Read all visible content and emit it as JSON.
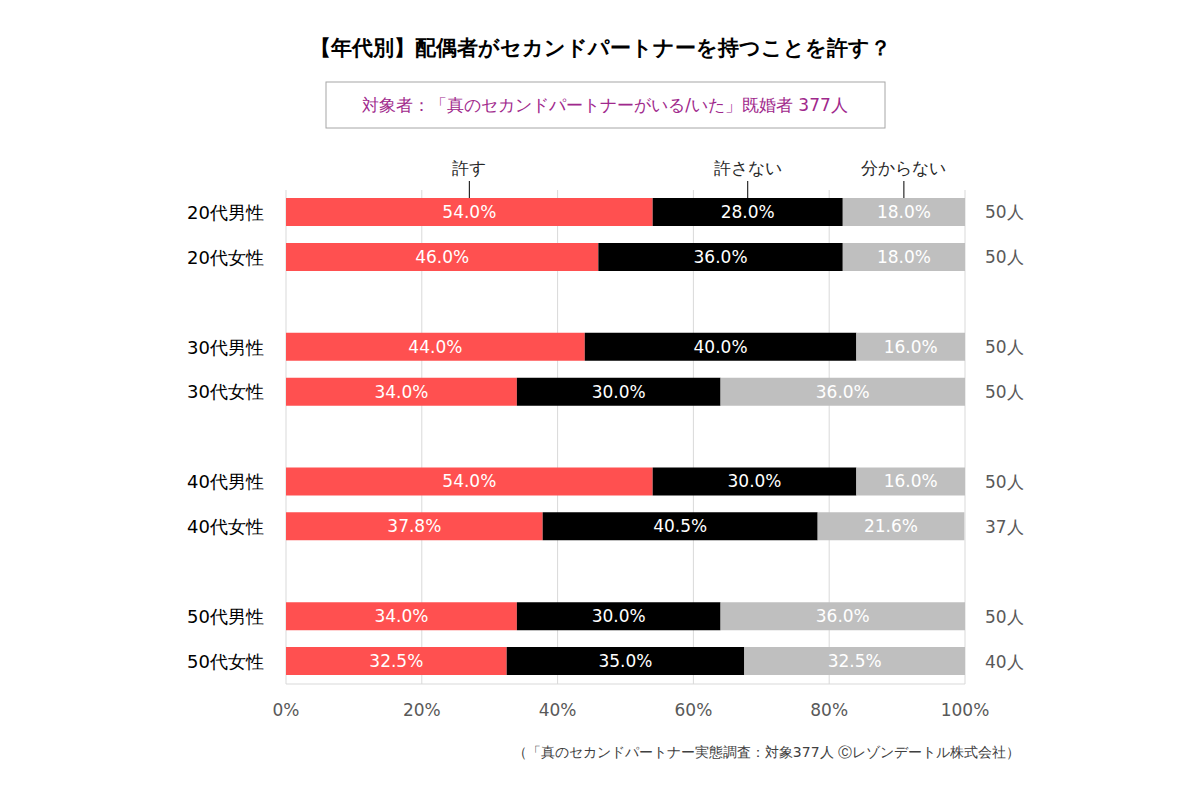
{
  "chart_data": {
    "type": "bar",
    "orientation": "horizontal",
    "stacked": true,
    "data_labels": true,
    "grid": true,
    "title": "【年代別】配偶者がセカンドパートナーを持つことを許す？",
    "subtitle": "対象者：「真のセカンドパートナーがいる/いた」既婚者 377人",
    "source": "（「真のセカンドパートナー実態調査：対象377人 Ⓒレゾンデートル株式会社）",
    "categories": [
      "20代男性",
      "20代女性",
      "30代男性",
      "30代女性",
      "40代男性",
      "40代女性",
      "50代男性",
      "50代女性"
    ],
    "n": [
      50,
      50,
      50,
      50,
      50,
      37,
      50,
      40
    ],
    "n_labels": [
      "50人",
      "50人",
      "50人",
      "50人",
      "50人",
      "37人",
      "50人",
      "40人"
    ],
    "series": [
      {
        "name": "許す",
        "color": "#ff5050",
        "values": [
          54.0,
          46.0,
          44.0,
          34.0,
          54.0,
          37.8,
          34.0,
          32.5
        ],
        "value_labels": [
          "54.0%",
          "46.0%",
          "44.0%",
          "34.0%",
          "54.0%",
          "37.8%",
          "34.0%",
          "32.5%"
        ]
      },
      {
        "name": "許さない",
        "color": "#000000",
        "values": [
          28.0,
          36.0,
          40.0,
          30.0,
          30.0,
          40.5,
          30.0,
          35.0
        ],
        "value_labels": [
          "28.0%",
          "36.0%",
          "40.0%",
          "30.0%",
          "30.0%",
          "40.5%",
          "30.0%",
          "35.0%"
        ]
      },
      {
        "name": "分からない",
        "color": "#bfbfbf",
        "values": [
          18.0,
          18.0,
          16.0,
          36.0,
          16.0,
          21.6,
          36.0,
          32.5
        ],
        "value_labels": [
          "18.0%",
          "18.0%",
          "16.0%",
          "36.0%",
          "16.0%",
          "21.6%",
          "36.0%",
          "32.5%"
        ]
      }
    ],
    "xlim": [
      0,
      100
    ],
    "xticks": [
      {
        "value": 0,
        "label": "0%"
      },
      {
        "value": 20,
        "label": "20%"
      },
      {
        "value": 40,
        "label": "40%"
      },
      {
        "value": 60,
        "label": "60%"
      },
      {
        "value": 80,
        "label": "80%"
      },
      {
        "value": 100,
        "label": "100%"
      }
    ]
  }
}
